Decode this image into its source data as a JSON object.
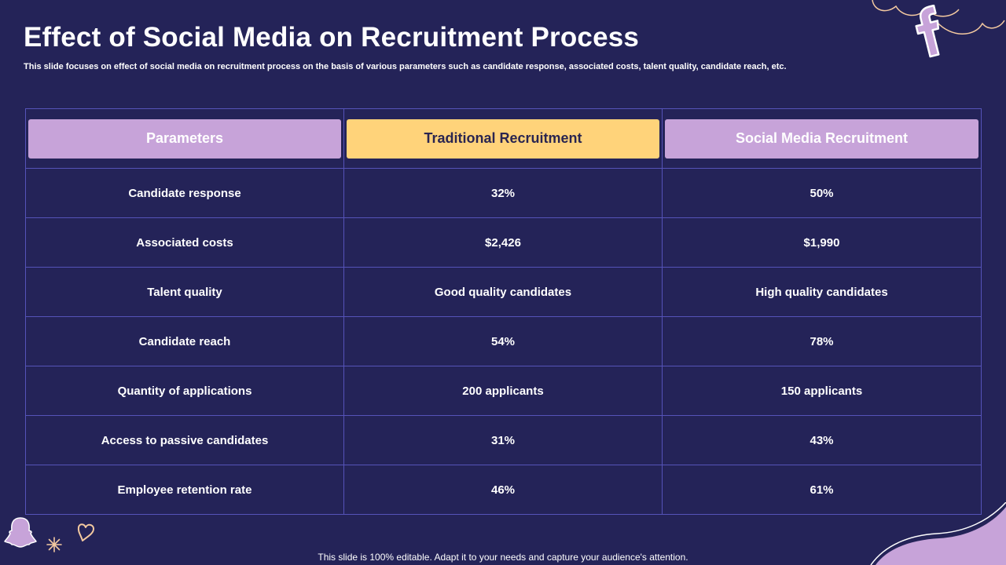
{
  "title": "Effect of Social Media on Recruitment Process",
  "subtitle": "This slide focuses on effect of social media on recruitment process on the basis of various parameters such as candidate response, associated costs, talent quality, candidate reach, etc.",
  "table": {
    "headers": [
      "Parameters",
      "Traditional Recruitment",
      "Social Media Recruitment"
    ],
    "rows": [
      [
        "Candidate response",
        "32%",
        "50%"
      ],
      [
        "Associated costs",
        "$2,426",
        "$1,990"
      ],
      [
        "Talent quality",
        "Good quality candidates",
        "High quality candidates"
      ],
      [
        "Candidate reach",
        "54%",
        "78%"
      ],
      [
        "Quantity of applications",
        "200 applicants",
        "150 applicants"
      ],
      [
        "Access to passive candidates",
        "31%",
        "43%"
      ],
      [
        "Employee retention rate",
        "46%",
        "61%"
      ]
    ]
  },
  "footer": "This slide is 100% editable. Adapt it to your needs and capture your audience's attention.",
  "colors": {
    "background": "#242358",
    "header_purple": "#c7a3d9",
    "header_yellow": "#ffd37a",
    "grid": "#5553b8",
    "decor_line": "#f3c9a0"
  },
  "icons": [
    "facebook-icon",
    "snapchat-ghost-icon",
    "sparkle-icon",
    "heart-icon",
    "cloud-line-decoration",
    "wave-decoration"
  ]
}
